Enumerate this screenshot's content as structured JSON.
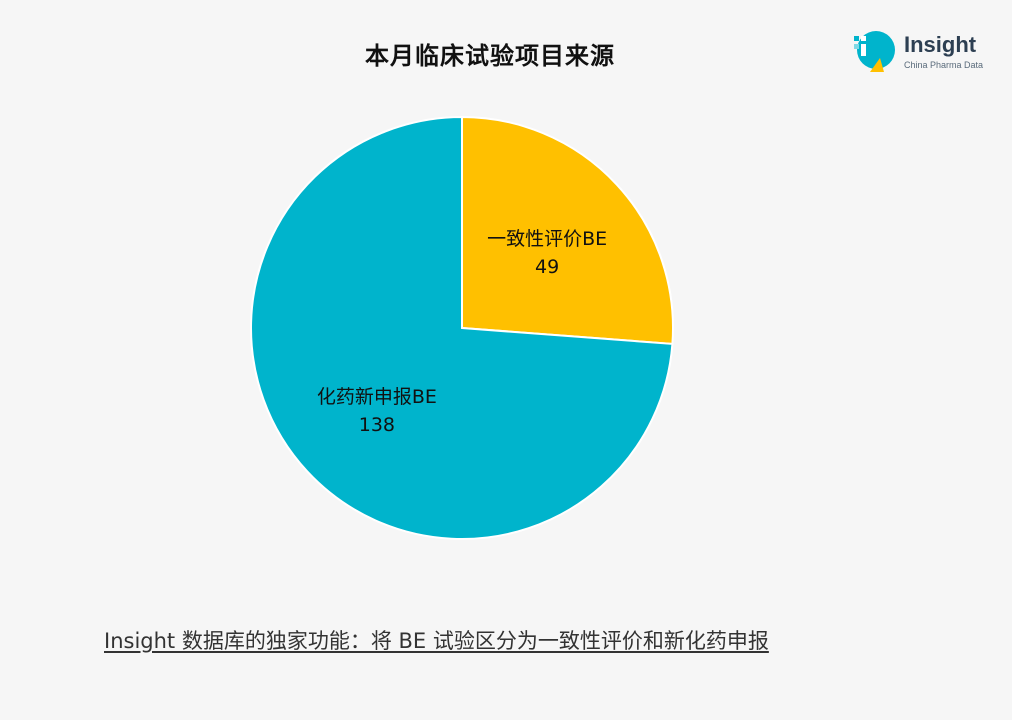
{
  "chart_data": {
    "type": "pie",
    "title": "本月临床试验项目来源",
    "slices": [
      {
        "label": "一致性评价BE",
        "value": 49,
        "color": "#ffc000"
      },
      {
        "label": "化药新申报BE",
        "value": 138,
        "color": "#00b4cc"
      }
    ],
    "start_angle_deg": 0,
    "direction": "clockwise",
    "legend": "none"
  },
  "logo": {
    "name": "Insight",
    "tagline": "China Pharma Data"
  },
  "footnote": "Insight 数据库的独家功能：将 BE 试验区分为一致性评价和新化药申报"
}
